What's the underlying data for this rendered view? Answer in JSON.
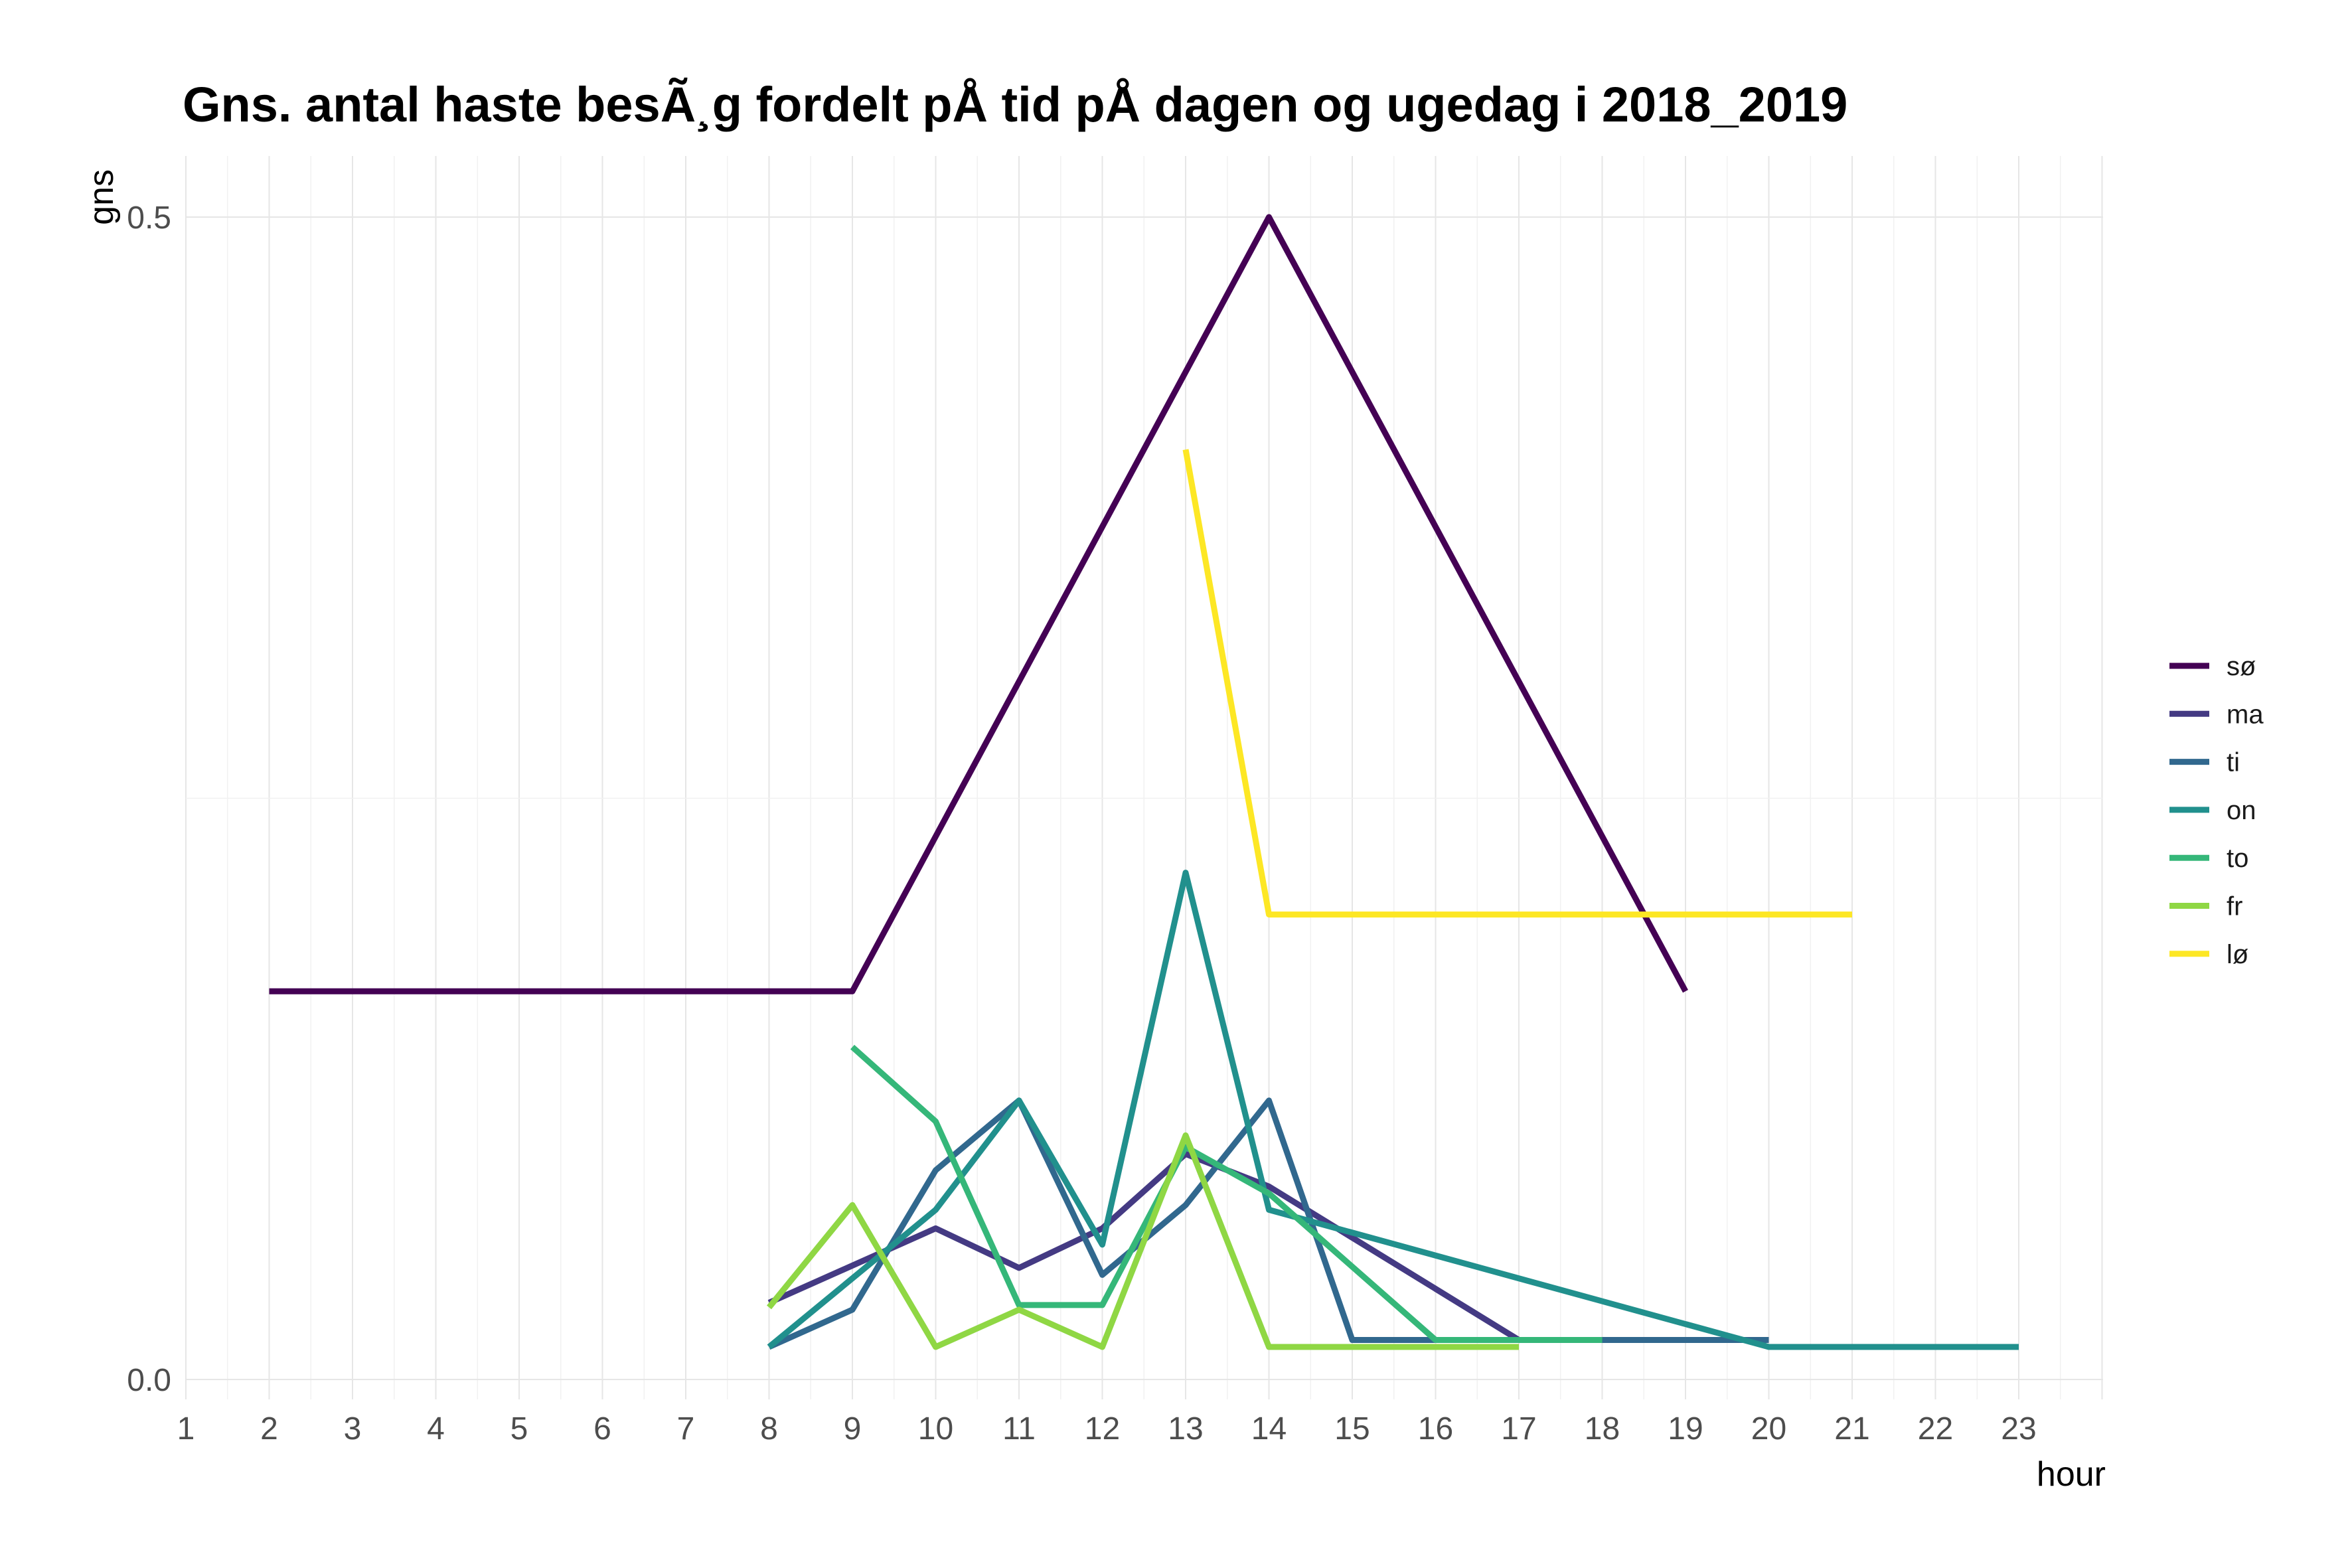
{
  "chart_data": {
    "type": "line",
    "title": "Gns. antal haste besÃ¸g fordelt pÅ tid pÅ dagen og ugedag i 2018_2019",
    "xlabel": "hour",
    "ylabel": "gns",
    "xlim": [
      1,
      24
    ],
    "ylim": [
      0,
      0.5
    ],
    "x_ticks": [
      1,
      2,
      3,
      4,
      5,
      6,
      7,
      8,
      9,
      10,
      11,
      12,
      13,
      14,
      15,
      16,
      17,
      18,
      19,
      20,
      21,
      22,
      23
    ],
    "y_ticks": [
      0.0,
      0.5
    ],
    "y_tick_labels": [
      "0.0",
      "0.5"
    ],
    "grid": true,
    "legend_position": "right",
    "series": [
      {
        "name": "sø",
        "color": "#440154",
        "points": [
          [
            2,
            0.167
          ],
          [
            9,
            0.167
          ],
          [
            14,
            0.5
          ],
          [
            19,
            0.167
          ]
        ]
      },
      {
        "name": "ma",
        "color": "#443a83",
        "points": [
          [
            8,
            0.033
          ],
          [
            10,
            0.065
          ],
          [
            11,
            0.048
          ],
          [
            12,
            0.065
          ],
          [
            13,
            0.097
          ],
          [
            14,
            0.083
          ],
          [
            17,
            0.017
          ],
          [
            20,
            0.017
          ]
        ]
      },
      {
        "name": "ti",
        "color": "#31688e",
        "points": [
          [
            8,
            0.014
          ],
          [
            9,
            0.03
          ],
          [
            10,
            0.09
          ],
          [
            11,
            0.12
          ],
          [
            12,
            0.045
          ],
          [
            13,
            0.075
          ],
          [
            14,
            0.12
          ],
          [
            15,
            0.017
          ],
          [
            20,
            0.017
          ]
        ]
      },
      {
        "name": "on",
        "color": "#21908d",
        "points": [
          [
            8,
            0.014
          ],
          [
            10,
            0.073
          ],
          [
            11,
            0.12
          ],
          [
            12,
            0.058
          ],
          [
            13,
            0.218
          ],
          [
            14,
            0.073
          ],
          [
            20,
            0.014
          ],
          [
            23,
            0.014
          ]
        ]
      },
      {
        "name": "to",
        "color": "#35b779",
        "points": [
          [
            9,
            0.143
          ],
          [
            10,
            0.111
          ],
          [
            11,
            0.032
          ],
          [
            12,
            0.032
          ],
          [
            13,
            0.1
          ],
          [
            14,
            0.08
          ],
          [
            16,
            0.017
          ],
          [
            18,
            0.017
          ]
        ]
      },
      {
        "name": "fr",
        "color": "#8fd744",
        "points": [
          [
            8,
            0.031
          ],
          [
            9,
            0.075
          ],
          [
            10,
            0.014
          ],
          [
            11,
            0.03
          ],
          [
            12,
            0.014
          ],
          [
            13,
            0.105
          ],
          [
            14,
            0.014
          ],
          [
            17,
            0.014
          ]
        ]
      },
      {
        "name": "lø",
        "color": "#fde725",
        "points": [
          [
            13,
            0.4
          ],
          [
            14,
            0.2
          ],
          [
            21,
            0.2
          ]
        ]
      }
    ]
  }
}
